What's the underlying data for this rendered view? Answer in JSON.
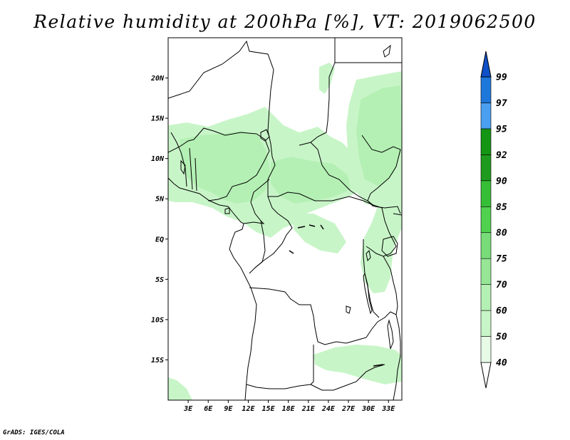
{
  "title": "Relative humidity at 200hPa [%], VT: 2019062500",
  "credit": "GrADS: IGES/COLA",
  "map": {
    "variable": "Relative humidity",
    "level": "200hPa",
    "units": "%",
    "valid_time": "2019062500",
    "lon_range": [
      0,
      35
    ],
    "lat_range": [
      -20,
      25
    ],
    "lat_ticks": [
      {
        "value": 20,
        "label": "20N"
      },
      {
        "value": 15,
        "label": "15N"
      },
      {
        "value": 10,
        "label": "10N"
      },
      {
        "value": 5,
        "label": "5N"
      },
      {
        "value": 0,
        "label": "EQ"
      },
      {
        "value": -5,
        "label": "5S"
      },
      {
        "value": -10,
        "label": "10S"
      },
      {
        "value": -15,
        "label": "15S"
      }
    ],
    "lon_ticks": [
      {
        "value": 3,
        "label": "3E"
      },
      {
        "value": 6,
        "label": "6E"
      },
      {
        "value": 9,
        "label": "9E"
      },
      {
        "value": 12,
        "label": "12E"
      },
      {
        "value": 15,
        "label": "15E"
      },
      {
        "value": 18,
        "label": "18E"
      },
      {
        "value": 21,
        "label": "21E"
      },
      {
        "value": 24,
        "label": "24E"
      },
      {
        "value": 27,
        "label": "27E"
      },
      {
        "value": 30,
        "label": "30E"
      },
      {
        "value": 33,
        "label": "33E"
      }
    ]
  },
  "colorbar": {
    "levels": [
      "40",
      "50",
      "60",
      "70",
      "75",
      "80",
      "85",
      "90",
      "92",
      "95",
      "97",
      "99"
    ],
    "colors": [
      "#e6fae6",
      "#c8f5c8",
      "#b4f0b4",
      "#96e696",
      "#78dc78",
      "#50d250",
      "#37be37",
      "#1e9b1e",
      "#149614",
      "#4a9ff0",
      "#1e78dc",
      "#1464d2",
      "#1050c8"
    ]
  },
  "colors": {
    "rh_light": "#c8f5c8",
    "rh_medium": "#b4f0b4",
    "boundary": "#000000"
  }
}
